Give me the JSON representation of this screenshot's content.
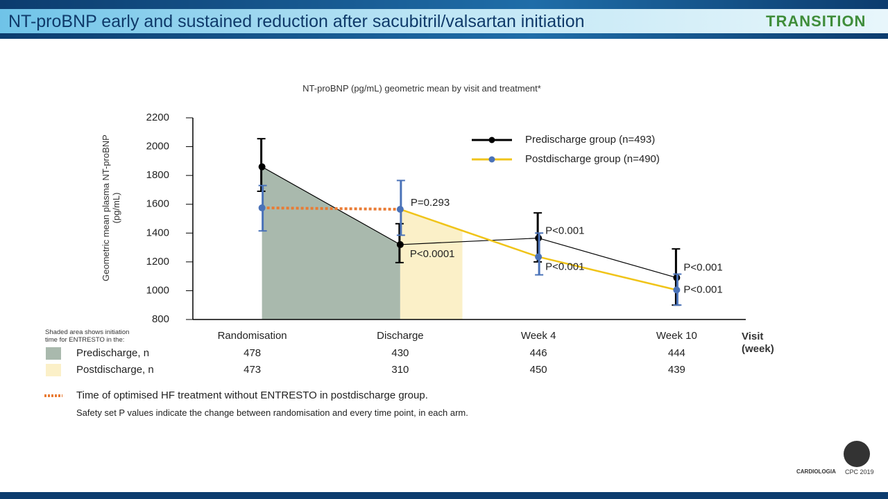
{
  "slide": {
    "title": "NT-proBNP early and sustained reduction after sacubitril/valsartan initiation",
    "logo": "TRANSITION",
    "footer_logo_1": "CARDIOLOGIA",
    "footer_logo_2": "CPC 2019"
  },
  "chart_data": {
    "type": "line",
    "title": "NT-proBNP (pg/mL) geometric mean by visit and treatment*",
    "ylabel": "Geometric mean plasma NT-proBNP (pg/mL)",
    "xlabel": "Visit (week)",
    "categories": [
      "Randomisation",
      "Discharge",
      "Week 4",
      "Week 10"
    ],
    "ylim": [
      800,
      2200
    ],
    "yticks": [
      800,
      1000,
      1200,
      1400,
      1600,
      1800,
      2000,
      2200
    ],
    "grid": false,
    "series": [
      {
        "name": "Predischarge group (n=493)",
        "color": "#000000",
        "marker_color": "#000000",
        "error_color": "#000000",
        "shade_color": "#a9b9ad",
        "values": [
          1860,
          1320,
          1365,
          1090
        ],
        "ci_low": [
          1690,
          1195,
          1200,
          900
        ],
        "ci_high": [
          2055,
          1465,
          1540,
          1290
        ],
        "p_labels": [
          null,
          "P<0.0001",
          "P<0.001",
          "P<0.001"
        ]
      },
      {
        "name": "Postdischarge group (n=490)",
        "color": "#f0c419",
        "dotted_color": "#e97b34",
        "marker_color": "#4a72b8",
        "error_color": "#4a72b8",
        "shade_color": "#fbf0c8",
        "values": [
          1575,
          1565,
          1235,
          1005
        ],
        "ci_low": [
          1415,
          1385,
          1110,
          900
        ],
        "ci_high": [
          1730,
          1765,
          1400,
          1115
        ],
        "p_labels": [
          null,
          "P=0.293",
          "P<0.001",
          "P<0.001"
        ]
      }
    ],
    "n_table": {
      "caption": "Shaded area shows initiation time for ENTRESTO in the:",
      "rows": [
        {
          "label": "Predischarge, n",
          "values": [
            478,
            430,
            446,
            444
          ]
        },
        {
          "label": "Postdischarge, n",
          "values": [
            473,
            310,
            450,
            439
          ]
        }
      ]
    },
    "notes": [
      "Time of optimised HF treatment without ENTRESTO in postdischarge group.",
      "Safety set P values indicate the change between randomisation and every time point, in each arm."
    ]
  }
}
